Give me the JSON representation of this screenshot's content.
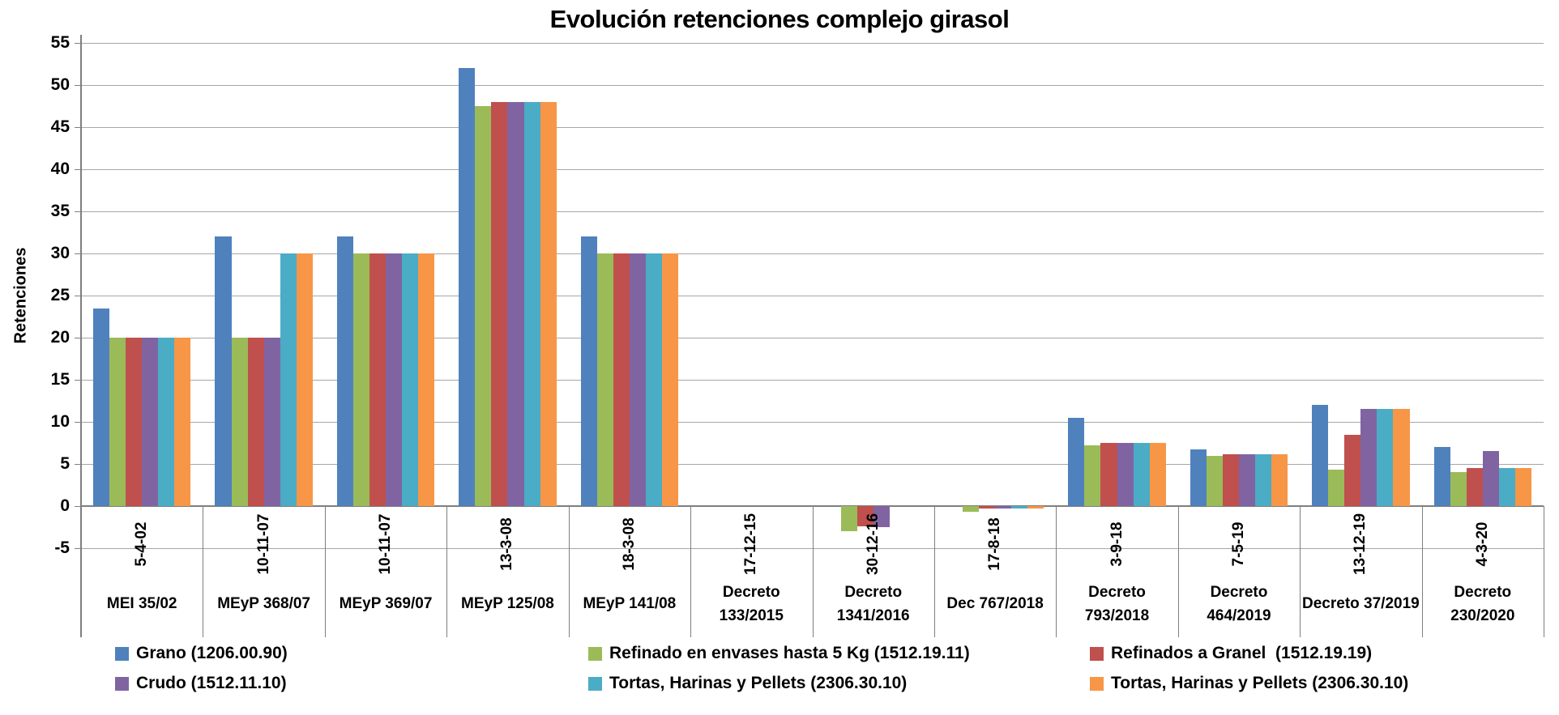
{
  "chart_data": {
    "type": "bar",
    "title": "Evolución retenciones complejo girasol",
    "ylabel": "Retenciones",
    "ylim": [
      -5,
      55
    ],
    "ytick_step": 5,
    "grid": true,
    "legend_position": "bottom",
    "categories": [
      {
        "date": "5-4-02",
        "decree_lines": [
          "MEI 35/02"
        ]
      },
      {
        "date": "10-11-07",
        "decree_lines": [
          "MEyP 368/07"
        ]
      },
      {
        "date": "10-11-07",
        "decree_lines": [
          "MEyP 369/07"
        ]
      },
      {
        "date": "13-3-08",
        "decree_lines": [
          "MEyP 125/08"
        ]
      },
      {
        "date": "18-3-08",
        "decree_lines": [
          "MEyP 141/08"
        ]
      },
      {
        "date": "17-12-15",
        "decree_lines": [
          "Decreto",
          "133/2015"
        ]
      },
      {
        "date": "30-12-16",
        "decree_lines": [
          "Decreto",
          "1341/2016"
        ]
      },
      {
        "date": "17-8-18",
        "decree_lines": [
          "Dec 767/2018"
        ]
      },
      {
        "date": "3-9-18",
        "decree_lines": [
          "Decreto",
          "793/2018"
        ]
      },
      {
        "date": "7-5-19",
        "decree_lines": [
          "Decreto",
          "464/2019"
        ]
      },
      {
        "date": "13-12-19",
        "decree_lines": [
          "Decreto 37/2019"
        ]
      },
      {
        "date": "4-3-20",
        "decree_lines": [
          "Decreto",
          "230/2020"
        ]
      }
    ],
    "series": [
      {
        "name": "Grano (1206.00.90)",
        "color": "#4F81BD",
        "values": [
          23.5,
          32,
          32,
          52,
          32,
          0,
          0,
          0,
          10.5,
          6.7,
          12,
          7
        ]
      },
      {
        "name": "Refinado en envases hasta 5 Kg (1512.19.11)",
        "color": "#9BBB59",
        "values": [
          20,
          20,
          30,
          47.5,
          30,
          0,
          -3,
          -0.7,
          7.2,
          6,
          4.3,
          4
        ]
      },
      {
        "name": "Refinados a Granel  (1512.19.19)",
        "color": "#C0504D",
        "values": [
          20,
          20,
          30,
          48,
          30,
          0,
          -2.4,
          -0.3,
          7.5,
          6.2,
          8.5,
          4.5
        ]
      },
      {
        "name": "Crudo (1512.11.10)",
        "color": "#8064A2",
        "values": [
          20,
          20,
          30,
          48,
          30,
          0,
          -2.5,
          -0.3,
          7.5,
          6.2,
          11.5,
          6.5
        ]
      },
      {
        "name": "Tortas, Harinas y Pellets (2306.30.10)",
        "color": "#4BACC6",
        "values": [
          20,
          30,
          30,
          48,
          30,
          0,
          0,
          -0.3,
          7.5,
          6.2,
          11.5,
          4.5
        ]
      },
      {
        "name": "Tortas, Harinas y Pellets (2306.30.10)",
        "color": "#F79646",
        "values": [
          20,
          30,
          30,
          48,
          30,
          0,
          0,
          -0.3,
          7.5,
          6.2,
          11.5,
          4.5
        ]
      }
    ],
    "legend_columns": [
      [
        0,
        3
      ],
      [
        1,
        4
      ],
      [
        2,
        5
      ]
    ]
  },
  "axis_colors": {
    "gridline": "#A6A6A6",
    "axis": "#7F7F7F",
    "text": "#000000"
  }
}
